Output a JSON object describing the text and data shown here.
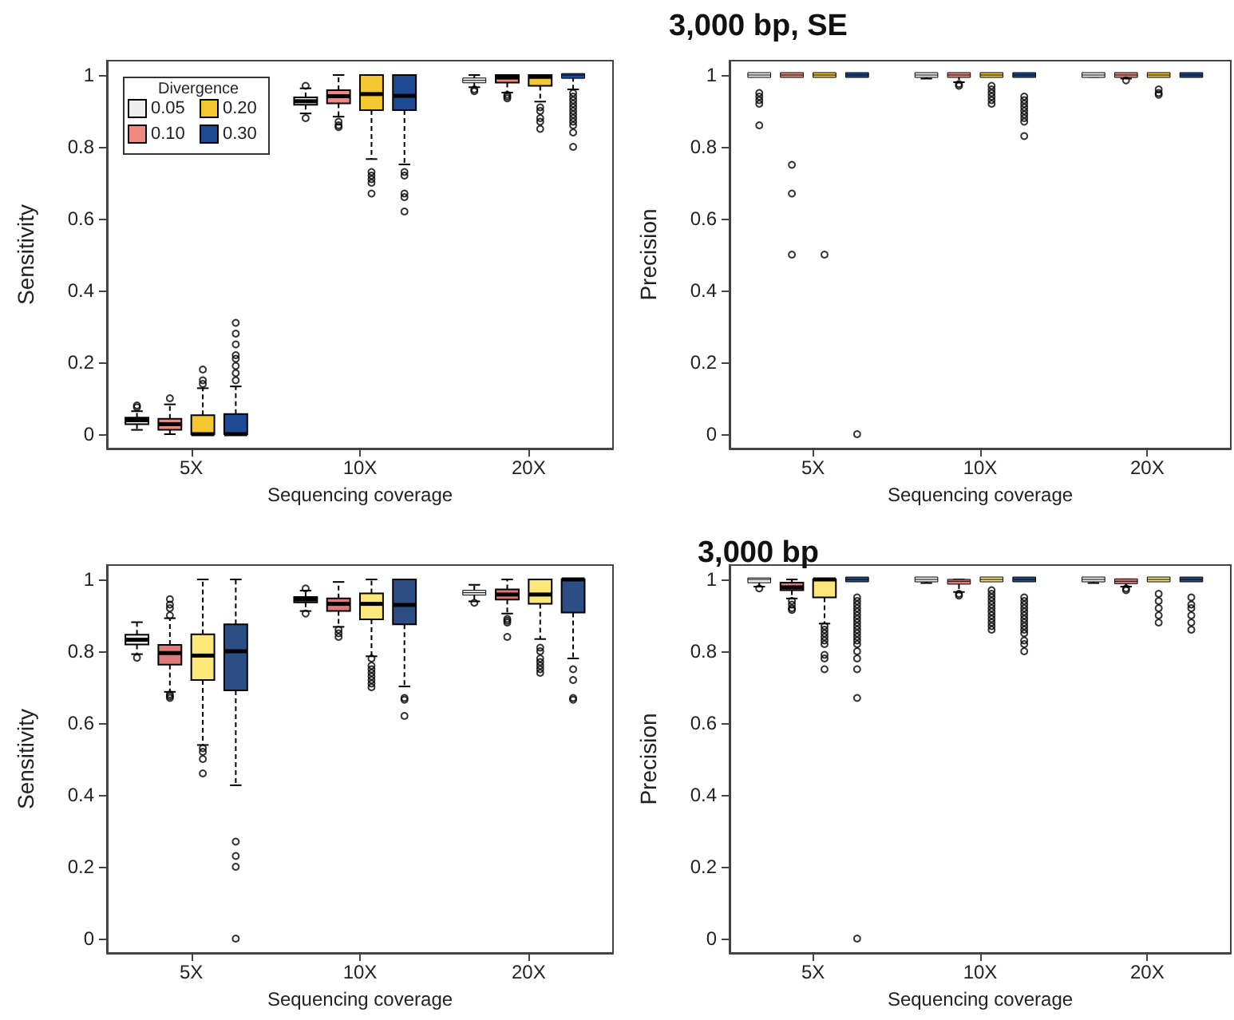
{
  "chart_data": [
    {
      "type": "box",
      "ylabel": "Sensitivity",
      "xlabel": "Sequencing coverage",
      "categories": [
        "5X",
        "10X",
        "20X"
      ],
      "ylim": [
        -0.04,
        1.04
      ],
      "yticks": [
        0,
        0.2,
        0.4,
        0.6,
        0.8,
        1
      ],
      "legend": "top left",
      "legend_title": "Divergence",
      "series": [
        {
          "name": "0.05",
          "color": "#eeeeee",
          "boxes": [
            {
              "low": 0.012,
              "q1": 0.028,
              "median": 0.039,
              "q3": 0.046,
              "high": 0.064,
              "outliers": [
                0.075,
                0.08
              ]
            },
            {
              "low": 0.893,
              "q1": 0.917,
              "median": 0.927,
              "q3": 0.938,
              "high": 0.963,
              "outliers": [
                0.88,
                0.97
              ]
            },
            {
              "low": 0.966,
              "q1": 0.979,
              "median": 0.985,
              "q3": 0.991,
              "high": 1,
              "outliers": [
                0.955,
                0.96
              ]
            }
          ]
        },
        {
          "name": "0.10",
          "color": "#f08a80",
          "boxes": [
            {
              "low": 0,
              "q1": 0.012,
              "median": 0.028,
              "q3": 0.043,
              "high": 0.083,
              "outliers": [
                0.1
              ]
            },
            {
              "low": 0.884,
              "q1": 0.921,
              "median": 0.941,
              "q3": 0.958,
              "high": 1,
              "outliers": [
                0.855,
                0.86,
                0.87
              ]
            },
            {
              "low": 0.951,
              "q1": 0.979,
              "median": 0.993,
              "q3": 1,
              "high": 1,
              "outliers": [
                0.935,
                0.94,
                0.945
              ]
            }
          ]
        },
        {
          "name": "0.20",
          "color": "#f5c832",
          "boxes": [
            {
              "low": 0,
              "q1": 0,
              "median": 0,
              "q3": 0.053,
              "high": 0.128,
              "outliers": [
                0.14,
                0.15,
                0.18
              ]
            },
            {
              "low": 0.766,
              "q1": 0.902,
              "median": 0.947,
              "q3": 1,
              "high": 1,
              "outliers": [
                0.67,
                0.7,
                0.71,
                0.72,
                0.73
              ]
            },
            {
              "low": 0.926,
              "q1": 0.97,
              "median": 0.995,
              "q3": 1,
              "high": 1,
              "outliers": [
                0.85,
                0.87,
                0.88,
                0.9,
                0.91
              ]
            }
          ]
        },
        {
          "name": "0.30",
          "color": "#1e4a94",
          "boxes": [
            {
              "low": 0,
              "q1": 0,
              "median": 0,
              "q3": 0.056,
              "high": 0.133,
              "outliers": [
                0.15,
                0.17,
                0.19,
                0.21,
                0.22,
                0.25,
                0.28,
                0.31
              ]
            },
            {
              "low": 0.751,
              "q1": 0.902,
              "median": 0.942,
              "q3": 1,
              "high": 1,
              "outliers": [
                0.62,
                0.66,
                0.67,
                0.72,
                0.73
              ]
            },
            {
              "low": 0.96,
              "q1": 0.995,
              "median": 1,
              "q3": 1,
              "high": 1,
              "outliers": [
                0.8,
                0.84,
                0.86,
                0.87,
                0.88,
                0.89,
                0.9,
                0.91,
                0.92,
                0.93,
                0.94,
                0.95
              ]
            }
          ]
        }
      ]
    },
    {
      "type": "box",
      "title": "3,000 bp, SE",
      "ylabel": "Precision",
      "xlabel": "Sequencing coverage",
      "categories": [
        "5X",
        "10X",
        "20X"
      ],
      "ylim": [
        -0.04,
        1.04
      ],
      "yticks": [
        0,
        0.2,
        0.4,
        0.6,
        0.8,
        1
      ],
      "series": [
        {
          "color": "#eeeeee",
          "boxes": [
            {
              "low": 1,
              "q1": 1,
              "median": 1,
              "q3": 1,
              "high": 1,
              "outliers": [
                0.86,
                0.92,
                0.93,
                0.94,
                0.95
              ]
            },
            {
              "low": 0.99,
              "q1": 1,
              "median": 1,
              "q3": 1,
              "high": 1
            },
            {
              "low": 0.995,
              "q1": 1,
              "median": 1,
              "q3": 1,
              "high": 1
            }
          ]
        },
        {
          "color": "#f08a80",
          "boxes": [
            {
              "low": 1,
              "q1": 1,
              "median": 1,
              "q3": 1,
              "high": 1,
              "outliers": [
                0.5,
                0.67,
                0.75
              ]
            },
            {
              "low": 0.98,
              "q1": 1,
              "median": 1,
              "q3": 1,
              "high": 1,
              "outliers": [
                0.97,
                0.975
              ]
            },
            {
              "low": 0.99,
              "q1": 1,
              "median": 1,
              "q3": 1,
              "high": 1,
              "outliers": [
                0.985
              ]
            }
          ]
        },
        {
          "color": "#f5c832",
          "boxes": [
            {
              "low": 1,
              "q1": 1,
              "median": 1,
              "q3": 1,
              "high": 1,
              "outliers": [
                0.5
              ]
            },
            {
              "low": 1,
              "q1": 1,
              "median": 1,
              "q3": 1,
              "high": 1,
              "outliers": [
                0.92,
                0.93,
                0.94,
                0.95,
                0.96,
                0.97
              ]
            },
            {
              "low": 1,
              "q1": 1,
              "median": 1,
              "q3": 1,
              "high": 1,
              "outliers": [
                0.945,
                0.95,
                0.96
              ]
            }
          ]
        },
        {
          "color": "#1e4a94",
          "boxes": [
            {
              "low": 1,
              "q1": 1,
              "median": 1,
              "q3": 1,
              "high": 1,
              "outliers": [
                0
              ]
            },
            {
              "low": 1,
              "q1": 1,
              "median": 1,
              "q3": 1,
              "high": 1,
              "outliers": [
                0.83,
                0.87,
                0.88,
                0.89,
                0.9,
                0.91,
                0.92,
                0.93,
                0.94
              ]
            },
            {
              "low": 1,
              "q1": 1,
              "median": 1,
              "q3": 1,
              "high": 1
            }
          ]
        }
      ]
    },
    {
      "type": "box",
      "ylabel": "Sensitivity",
      "xlabel": "Sequencing coverage",
      "categories": [
        "5X",
        "10X",
        "20X"
      ],
      "ylim": [
        -0.04,
        1.04
      ],
      "yticks": [
        0,
        0.2,
        0.4,
        0.6,
        0.8,
        1
      ],
      "series": [
        {
          "color": "#eeeeee",
          "boxes": [
            {
              "low": 0.792,
              "q1": 0.819,
              "median": 0.832,
              "q3": 0.846,
              "high": 0.881,
              "outliers": [
                0.782
              ]
            },
            {
              "low": 0.912,
              "q1": 0.936,
              "median": 0.944,
              "q3": 0.951,
              "high": 0.969,
              "outliers": [
                0.905,
                0.975
              ]
            },
            {
              "low": 0.939,
              "q1": 0.957,
              "median": 0.963,
              "q3": 0.969,
              "high": 0.985,
              "outliers": [
                0.935
              ]
            }
          ]
        },
        {
          "color": "#e07a78",
          "boxes": [
            {
              "low": 0.687,
              "q1": 0.763,
              "median": 0.795,
              "q3": 0.818,
              "high": 0.892,
              "outliers": [
                0.67,
                0.675,
                0.68,
                0.9,
                0.92,
                0.93,
                0.945
              ]
            },
            {
              "low": 0.868,
              "q1": 0.912,
              "median": 0.932,
              "q3": 0.947,
              "high": 0.993,
              "outliers": [
                0.84,
                0.85,
                0.86
              ]
            },
            {
              "low": 0.905,
              "q1": 0.944,
              "median": 0.958,
              "q3": 0.972,
              "high": 1,
              "outliers": [
                0.84,
                0.88,
                0.885,
                0.89
              ]
            }
          ]
        },
        {
          "color": "#fde67a",
          "boxes": [
            {
              "low": 0.539,
              "q1": 0.72,
              "median": 0.788,
              "q3": 0.847,
              "high": 1,
              "outliers": [
                0.46,
                0.5,
                0.52,
                0.53
              ]
            },
            {
              "low": 0.786,
              "q1": 0.889,
              "median": 0.932,
              "q3": 0.961,
              "high": 1,
              "outliers": [
                0.7,
                0.71,
                0.72,
                0.73,
                0.74,
                0.75,
                0.76,
                0.78
              ]
            },
            {
              "low": 0.834,
              "q1": 0.932,
              "median": 0.958,
              "q3": 1,
              "high": 1,
              "outliers": [
                0.74,
                0.75,
                0.76,
                0.77,
                0.78,
                0.8,
                0.81
              ]
            }
          ]
        },
        {
          "color": "#2c4e85",
          "boxes": [
            {
              "low": 0.427,
              "q1": 0.691,
              "median": 0.8,
              "q3": 0.875,
              "high": 1,
              "outliers": [
                0,
                0.2,
                0.23,
                0.27
              ]
            },
            {
              "low": 0.702,
              "q1": 0.875,
              "median": 0.929,
              "q3": 1,
              "high": 1,
              "outliers": [
                0.62,
                0.665,
                0.67
              ]
            },
            {
              "low": 0.78,
              "q1": 0.908,
              "median": 1,
              "q3": 1,
              "high": 1,
              "outliers": [
                0.665,
                0.67,
                0.72,
                0.75
              ]
            }
          ]
        }
      ]
    },
    {
      "type": "box",
      "title": "3,000 bp",
      "ylabel": "Precision",
      "xlabel": "Sequencing coverage",
      "categories": [
        "5X",
        "10X",
        "20X"
      ],
      "ylim": [
        -0.04,
        1.04
      ],
      "yticks": [
        0,
        0.2,
        0.4,
        0.6,
        0.8,
        1
      ],
      "series": [
        {
          "color": "#eeeeee",
          "boxes": [
            {
              "low": 0.98,
              "q1": 0.995,
              "median": 1,
              "q3": 1,
              "high": 1,
              "outliers": [
                0.975
              ]
            },
            {
              "low": 0.99,
              "q1": 1,
              "median": 1,
              "q3": 1,
              "high": 1
            },
            {
              "low": 0.99,
              "q1": 1,
              "median": 1,
              "q3": 1,
              "high": 1
            }
          ]
        },
        {
          "color": "#e07a78",
          "boxes": [
            {
              "low": 0.947,
              "q1": 0.97,
              "median": 0.978,
              "q3": 0.991,
              "high": 1,
              "outliers": [
                0.915,
                0.92,
                0.93,
                0.94
              ]
            },
            {
              "low": 0.965,
              "q1": 0.987,
              "median": 0.995,
              "q3": 1,
              "high": 1,
              "outliers": [
                0.955,
                0.96
              ]
            },
            {
              "low": 0.98,
              "q1": 0.99,
              "median": 0.995,
              "q3": 1,
              "high": 1,
              "outliers": [
                0.97,
                0.975
              ]
            }
          ]
        },
        {
          "color": "#fde67a",
          "boxes": [
            {
              "low": 0.877,
              "q1": 0.95,
              "median": 1,
              "q3": 1,
              "high": 1,
              "outliers": [
                0.75,
                0.78,
                0.79,
                0.82,
                0.83,
                0.84,
                0.85,
                0.86,
                0.87
              ]
            },
            {
              "low": 1,
              "q1": 1,
              "median": 1,
              "q3": 1,
              "high": 1,
              "outliers": [
                0.86,
                0.87,
                0.88,
                0.89,
                0.9,
                0.91,
                0.92,
                0.93,
                0.94,
                0.95,
                0.96,
                0.97
              ]
            },
            {
              "low": 1,
              "q1": 1,
              "median": 1,
              "q3": 1,
              "high": 1,
              "outliers": [
                0.88,
                0.9,
                0.92,
                0.94,
                0.96
              ]
            }
          ]
        },
        {
          "color": "#2c4e85",
          "boxes": [
            {
              "low": 1,
              "q1": 1,
              "median": 1,
              "q3": 1,
              "high": 1,
              "outliers": [
                0,
                0.67,
                0.75,
                0.78,
                0.8,
                0.82,
                0.83,
                0.84,
                0.85,
                0.86,
                0.87,
                0.88,
                0.89,
                0.9,
                0.91,
                0.92,
                0.93,
                0.94,
                0.95
              ]
            },
            {
              "low": 1,
              "q1": 1,
              "median": 1,
              "q3": 1,
              "high": 1,
              "outliers": [
                0.8,
                0.82,
                0.83,
                0.85,
                0.86,
                0.87,
                0.88,
                0.89,
                0.9,
                0.91,
                0.92,
                0.93,
                0.94,
                0.95
              ]
            },
            {
              "low": 1,
              "q1": 1,
              "median": 1,
              "q3": 1,
              "high": 1,
              "outliers": [
                0.86,
                0.88,
                0.9,
                0.92,
                0.93,
                0.95
              ]
            }
          ]
        }
      ]
    }
  ]
}
